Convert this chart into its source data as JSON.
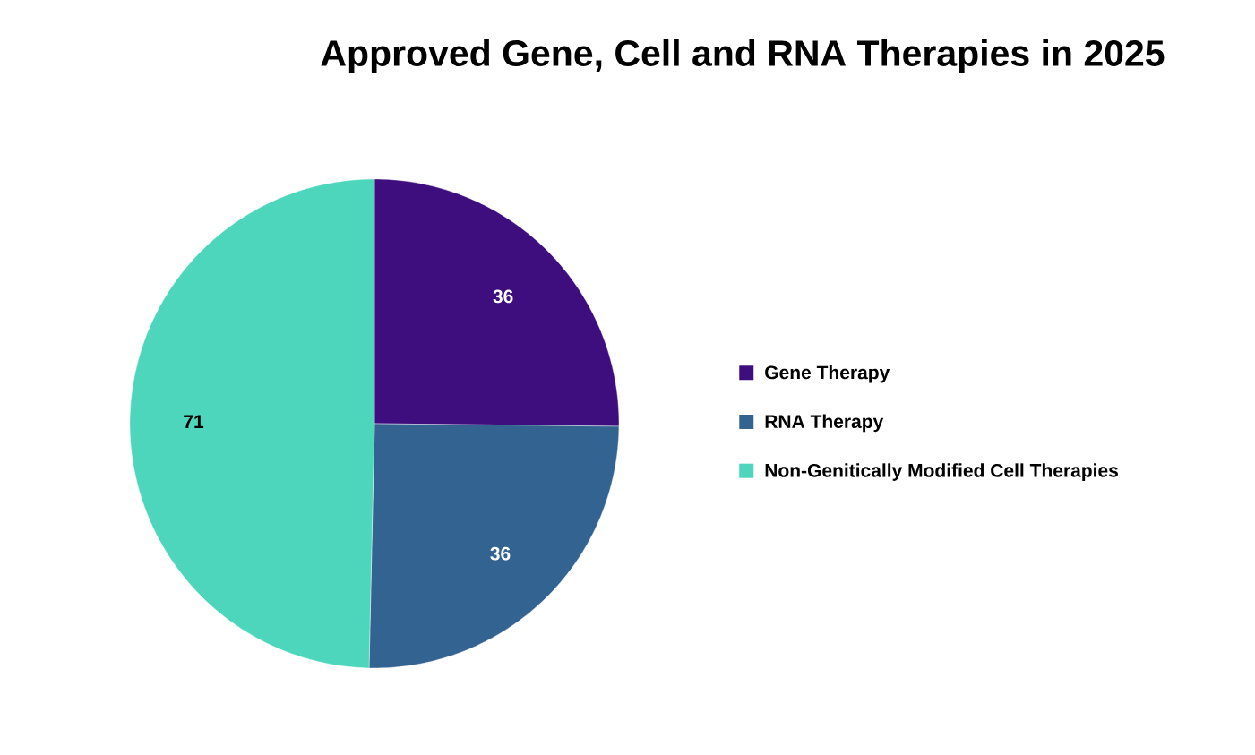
{
  "chart_data": {
    "type": "pie",
    "title": "Approved Gene, Cell and RNA Therapies in 2025",
    "categories": [
      "Gene Therapy",
      "RNA Therapy",
      "Non-Genitically Modified Cell Therapies"
    ],
    "values": [
      36,
      36,
      71
    ],
    "colors": [
      "#3f0e7e",
      "#336491",
      "#4dd6bb"
    ],
    "data_labels": true,
    "legend": "right"
  }
}
